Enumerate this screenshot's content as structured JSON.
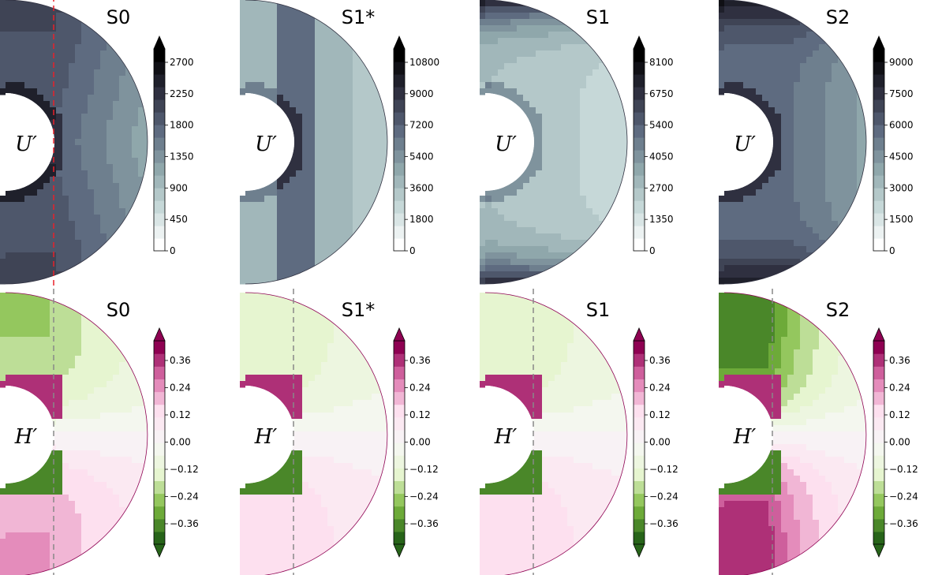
{
  "figure": {
    "rows": [
      {
        "quantity": "U'",
        "inner_label": "U′",
        "colormap": "bone_r",
        "colormap_stops": [
          "#ffffff",
          "#c6d8d8",
          "#8fa7ab",
          "#5e6b80",
          "#2f3040",
          "#000000"
        ],
        "divider_style": "dashed-red-first-panel-only",
        "panels": [
          {
            "title": "S0",
            "ticks": [
              "0",
              "450",
              "900",
              "1350",
              "1800",
              "2250",
              "2700"
            ]
          },
          {
            "title": "S1*",
            "ticks": [
              "0",
              "1800",
              "3600",
              "5400",
              "7200",
              "9000",
              "10800"
            ]
          },
          {
            "title": "S1",
            "ticks": [
              "0",
              "1350",
              "2700",
              "4050",
              "5400",
              "6750",
              "8100"
            ]
          },
          {
            "title": "S2",
            "ticks": [
              "0",
              "1500",
              "3000",
              "4500",
              "6000",
              "7500",
              "9000"
            ]
          }
        ]
      },
      {
        "quantity": "H'",
        "inner_label": "H′",
        "colormap": "PiYG_r",
        "colormap_stops": [
          "#276419",
          "#7fbc41",
          "#e6f5d0",
          "#f7f7f7",
          "#fde0ef",
          "#de77ae",
          "#8e0152"
        ],
        "divider_style": "dashed-gray",
        "panels": [
          {
            "title": "S0",
            "ticks": [
              "−0.36",
              "−0.24",
              "−0.12",
              "0.00",
              "0.12",
              "0.24",
              "0.36"
            ]
          },
          {
            "title": "S1*",
            "ticks": [
              "−0.36",
              "−0.24",
              "−0.12",
              "0.00",
              "0.12",
              "0.24",
              "0.36"
            ]
          },
          {
            "title": "S1",
            "ticks": [
              "−0.36",
              "−0.24",
              "−0.12",
              "0.00",
              "0.12",
              "0.24",
              "0.36"
            ]
          },
          {
            "title": "S2",
            "ticks": [
              "−0.36",
              "−0.24",
              "−0.12",
              "0.00",
              "0.12",
              "0.24",
              "0.36"
            ]
          }
        ]
      }
    ]
  },
  "chart_data": [
    {
      "type": "heatmap",
      "title": "S0",
      "field": "U'",
      "colorbar_ticks": [
        0,
        450,
        900,
        1350,
        1800,
        2250,
        2700
      ],
      "range": [
        0,
        2700
      ]
    },
    {
      "type": "heatmap",
      "title": "S1*",
      "field": "U'",
      "colorbar_ticks": [
        0,
        1800,
        3600,
        5400,
        7200,
        9000,
        10800
      ],
      "range": [
        0,
        10800
      ]
    },
    {
      "type": "heatmap",
      "title": "S1",
      "field": "U'",
      "colorbar_ticks": [
        0,
        1350,
        2700,
        4050,
        5400,
        6750,
        8100
      ],
      "range": [
        0,
        8100
      ]
    },
    {
      "type": "heatmap",
      "title": "S2",
      "field": "U'",
      "colorbar_ticks": [
        0,
        1500,
        3000,
        4500,
        6000,
        7500,
        9000
      ],
      "range": [
        0,
        9000
      ]
    },
    {
      "type": "heatmap",
      "title": "S0",
      "field": "H'",
      "colorbar_ticks": [
        -0.36,
        -0.24,
        -0.12,
        0.0,
        0.12,
        0.24,
        0.36
      ],
      "range": [
        -0.36,
        0.36
      ]
    },
    {
      "type": "heatmap",
      "title": "S1*",
      "field": "H'",
      "colorbar_ticks": [
        -0.36,
        -0.24,
        -0.12,
        0.0,
        0.12,
        0.24,
        0.36
      ],
      "range": [
        -0.36,
        0.36
      ]
    },
    {
      "type": "heatmap",
      "title": "S1",
      "field": "H'",
      "colorbar_ticks": [
        -0.36,
        -0.24,
        -0.12,
        0.0,
        0.12,
        0.24,
        0.36
      ],
      "range": [
        -0.36,
        0.36
      ]
    },
    {
      "type": "heatmap",
      "title": "S2",
      "field": "H'",
      "colorbar_ticks": [
        -0.36,
        -0.24,
        -0.12,
        0.0,
        0.12,
        0.24,
        0.36
      ],
      "range": [
        -0.36,
        0.36
      ]
    }
  ]
}
